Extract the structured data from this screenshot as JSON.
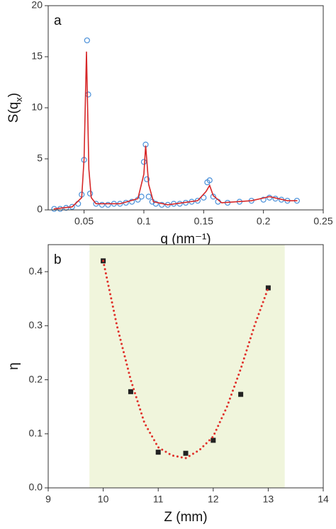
{
  "chart_data": [
    {
      "type": "scatter",
      "panel_label": "a",
      "xlabel": "q (nm⁻¹)",
      "ylabel": [
        "S(q",
        "x",
        ")"
      ],
      "xlim": [
        0.02,
        0.25
      ],
      "xticks": [
        0.05,
        0.1,
        0.15,
        0.2,
        0.25
      ],
      "ylim": [
        0,
        20
      ],
      "yticks": [
        0,
        5,
        10,
        15,
        20
      ],
      "series": [
        {
          "mode": "markers",
          "marker": "circle",
          "color": "#4a90d9",
          "x": [
            0.025,
            0.03,
            0.035,
            0.04,
            0.045,
            0.048,
            0.05,
            0.0525,
            0.0535,
            0.055,
            0.06,
            0.065,
            0.07,
            0.075,
            0.08,
            0.085,
            0.09,
            0.095,
            0.098,
            0.1,
            0.1015,
            0.1025,
            0.104,
            0.107,
            0.11,
            0.115,
            0.12,
            0.125,
            0.13,
            0.135,
            0.14,
            0.145,
            0.15,
            0.153,
            0.155,
            0.158,
            0.162,
            0.17,
            0.18,
            0.19,
            0.2,
            0.205,
            0.21,
            0.215,
            0.22,
            0.228
          ],
          "values": [
            0.1,
            0.1,
            0.2,
            0.3,
            0.6,
            1.5,
            4.9,
            16.6,
            11.3,
            1.6,
            0.6,
            0.5,
            0.5,
            0.6,
            0.6,
            0.7,
            0.8,
            1.0,
            1.3,
            4.7,
            6.4,
            3.0,
            1.3,
            0.8,
            0.6,
            0.5,
            0.5,
            0.6,
            0.6,
            0.7,
            0.8,
            0.9,
            1.2,
            2.7,
            2.9,
            1.3,
            0.8,
            0.7,
            0.8,
            0.9,
            1.0,
            1.2,
            1.1,
            1.0,
            0.9,
            0.9
          ]
        },
        {
          "mode": "line",
          "dash": "none",
          "color": "#d62728",
          "x": [
            0.025,
            0.04,
            0.048,
            0.05,
            0.052,
            0.054,
            0.056,
            0.06,
            0.08,
            0.095,
            0.1,
            0.1015,
            0.104,
            0.108,
            0.12,
            0.145,
            0.152,
            0.155,
            0.158,
            0.165,
            0.19,
            0.205,
            0.22,
            0.228
          ],
          "values": [
            0.1,
            0.3,
            1.2,
            5,
            15.5,
            4,
            1.2,
            0.6,
            0.6,
            1.1,
            3.5,
            6.3,
            2.5,
            0.8,
            0.5,
            0.9,
            1.8,
            2.4,
            1.4,
            0.7,
            0.9,
            1.3,
            0.9,
            0.9
          ]
        }
      ]
    },
    {
      "type": "scatter",
      "panel_label": "b",
      "xlabel": "Z (mm)",
      "ylabel": [
        "η"
      ],
      "xlim": [
        9,
        14
      ],
      "xticks": [
        9,
        10,
        11,
        12,
        13,
        14
      ],
      "ylim": [
        0,
        0.45
      ],
      "yticks": [
        {
          "value": 0,
          "label": "0.0"
        },
        0.1,
        0.2,
        0.3,
        0.4
      ],
      "shaded_x": [
        9.75,
        13.3
      ],
      "shade_color": "#f0f5dc",
      "series": [
        {
          "mode": "markers",
          "marker": "square",
          "color": "#222222",
          "x": [
            10,
            10.5,
            11,
            11.5,
            12,
            12.5,
            13
          ],
          "values": [
            0.42,
            0.178,
            0.066,
            0.064,
            0.088,
            0.173,
            0.37
          ]
        },
        {
          "mode": "line",
          "dash": "dotted",
          "color": "#e0302a",
          "x": [
            10,
            10.25,
            10.5,
            10.75,
            11,
            11.25,
            11.5,
            11.75,
            12,
            12.25,
            12.5,
            12.75,
            13
          ],
          "values": [
            0.42,
            0.3,
            0.2,
            0.12,
            0.075,
            0.06,
            0.055,
            0.07,
            0.095,
            0.15,
            0.22,
            0.3,
            0.37
          ]
        }
      ]
    }
  ]
}
